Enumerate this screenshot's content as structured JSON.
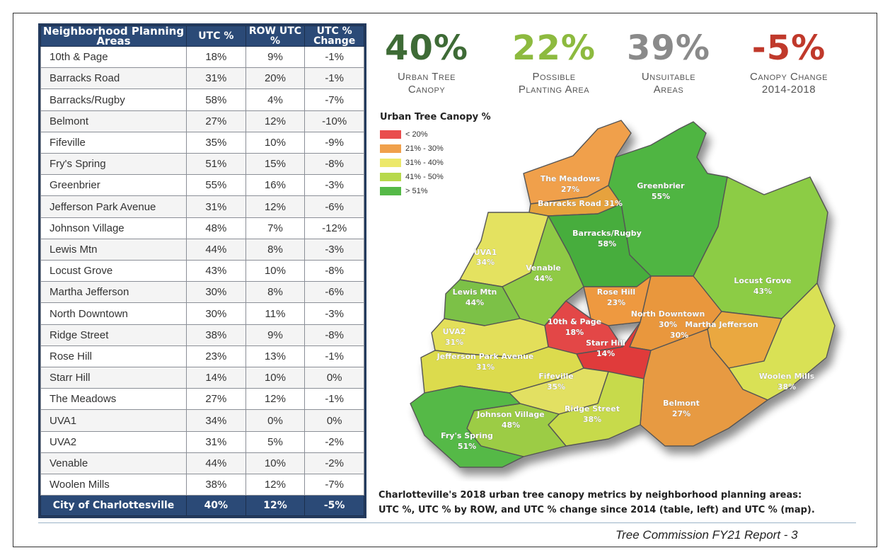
{
  "table": {
    "headers": {
      "area": "Neighborhood Planning Areas",
      "utc": "UTC %",
      "row": "ROW UTC %",
      "change": "UTC % Change"
    },
    "rows": [
      {
        "name": "10th & Page",
        "utc": "18%",
        "row": "9%",
        "change": "-1%"
      },
      {
        "name": "Barracks Road",
        "utc": "31%",
        "row": "20%",
        "change": "-1%"
      },
      {
        "name": "Barracks/Rugby",
        "utc": "58%",
        "row": "4%",
        "change": "-7%"
      },
      {
        "name": "Belmont",
        "utc": "27%",
        "row": "12%",
        "change": "-10%"
      },
      {
        "name": "Fifeville",
        "utc": "35%",
        "row": "10%",
        "change": "-9%"
      },
      {
        "name": "Fry's Spring",
        "utc": "51%",
        "row": "15%",
        "change": "-8%"
      },
      {
        "name": "Greenbrier",
        "utc": "55%",
        "row": "16%",
        "change": "-3%"
      },
      {
        "name": "Jefferson Park Avenue",
        "utc": "31%",
        "row": "12%",
        "change": "-6%"
      },
      {
        "name": "Johnson Village",
        "utc": "48%",
        "row": "7%",
        "change": "-12%"
      },
      {
        "name": "Lewis Mtn",
        "utc": "44%",
        "row": "8%",
        "change": "-3%"
      },
      {
        "name": "Locust Grove",
        "utc": "43%",
        "row": "10%",
        "change": "-8%"
      },
      {
        "name": "Martha Jefferson",
        "utc": "30%",
        "row": "8%",
        "change": "-6%"
      },
      {
        "name": "North Downtown",
        "utc": "30%",
        "row": "11%",
        "change": "-3%"
      },
      {
        "name": "Ridge Street",
        "utc": "38%",
        "row": "9%",
        "change": "-8%"
      },
      {
        "name": "Rose Hill",
        "utc": "23%",
        "row": "13%",
        "change": "-1%"
      },
      {
        "name": "Starr Hill",
        "utc": "14%",
        "row": "10%",
        "change": "0%"
      },
      {
        "name": "The Meadows",
        "utc": "27%",
        "row": "12%",
        "change": "-1%"
      },
      {
        "name": "UVA1",
        "utc": "34%",
        "row": "0%",
        "change": "0%"
      },
      {
        "name": "UVA2",
        "utc": "31%",
        "row": "5%",
        "change": "-2%"
      },
      {
        "name": "Venable",
        "utc": "44%",
        "row": "10%",
        "change": "-2%"
      },
      {
        "name": "Woolen Mills",
        "utc": "38%",
        "row": "12%",
        "change": "-7%"
      }
    ],
    "total": {
      "name": "City of Charlottesville",
      "utc": "40%",
      "row": "12%",
      "change": "-5%"
    }
  },
  "stats": [
    {
      "value": "40%",
      "label_line1": "Urban Tree",
      "label_line2": "Canopy",
      "color": "#3e6b36"
    },
    {
      "value": "22%",
      "label_line1": "Possible",
      "label_line2": "Planting Area",
      "color": "#8dba3f"
    },
    {
      "value": "39%",
      "label_line1": "Unsuitable",
      "label_line2": "Areas",
      "color": "#8a8a8a"
    },
    {
      "value": "-5%",
      "label_line1": "Canopy Change",
      "label_line2": "2014-2018",
      "color": "#c0392b"
    }
  ],
  "legend": {
    "title": "Urban Tree Canopy %",
    "items": [
      {
        "label": "< 20%",
        "color": "#e94e4e"
      },
      {
        "label": "21% - 30%",
        "color": "#f0a04b"
      },
      {
        "label": "31% - 40%",
        "color": "#ece86a"
      },
      {
        "label": "41% - 50%",
        "color": "#b7d94c"
      },
      {
        "label": "> 51%",
        "color": "#55b947"
      }
    ]
  },
  "map": {
    "neighborhoods": [
      {
        "id": "meadows",
        "line1": "The Meadows",
        "line2": "27%",
        "color": "#f0a04b"
      },
      {
        "id": "barracks",
        "line1": "Barracks Road 31%",
        "line2": "",
        "color": "#e6a23d"
      },
      {
        "id": "greenbrier",
        "line1": "Greenbrier",
        "line2": "55%",
        "color": "#4fb543"
      },
      {
        "id": "rugby",
        "line1": "Barracks/Rugby",
        "line2": "58%",
        "color": "#46ad3d"
      },
      {
        "id": "uva1",
        "line1": "UVA1",
        "line2": "34%",
        "color": "#e4e260"
      },
      {
        "id": "venable",
        "line1": "Venable",
        "line2": "44%",
        "color": "#8fca44"
      },
      {
        "id": "lewis",
        "line1": "Lewis Mtn",
        "line2": "44%",
        "color": "#7cc146"
      },
      {
        "id": "rosehill",
        "line1": "Rose Hill",
        "line2": "23%",
        "color": "#ee9940"
      },
      {
        "id": "locust",
        "line1": "Locust Grove",
        "line2": "43%",
        "color": "#8ccc44"
      },
      {
        "id": "tenth",
        "line1": "10th & Page",
        "line2": "18%",
        "color": "#e34646"
      },
      {
        "id": "northdt",
        "line1": "North Downtown",
        "line2": "30%",
        "color": "#e9973c"
      },
      {
        "id": "martha",
        "line1": "Martha Jefferson",
        "line2": "30%",
        "color": "#eaa83f"
      },
      {
        "id": "starr",
        "line1": "Starr Hill",
        "line2": "14%",
        "color": "#e03b3b"
      },
      {
        "id": "uva2",
        "line1": "UVA2",
        "line2": "31%",
        "color": "#e3df5a"
      },
      {
        "id": "jpa",
        "line1": "Jefferson Park Avenue",
        "line2": "31%",
        "color": "#dcdb4e"
      },
      {
        "id": "fifeville",
        "line1": "Fifeville",
        "line2": "35%",
        "color": "#e2e062"
      },
      {
        "id": "woolen",
        "line1": "Woolen Mills",
        "line2": "38%",
        "color": "#d9e155"
      },
      {
        "id": "belmont",
        "line1": "Belmont",
        "line2": "27%",
        "color": "#e79a42"
      },
      {
        "id": "ridge",
        "line1": "Ridge Street",
        "line2": "38%",
        "color": "#c7da4b"
      },
      {
        "id": "johnson",
        "line1": "Johnson Village",
        "line2": "48%",
        "color": "#9ccc44"
      },
      {
        "id": "frys",
        "line1": "Fry's Spring",
        "line2": "51%",
        "color": "#55b947"
      }
    ]
  },
  "caption": {
    "line1": "Charlotteville's 2018 urban tree canopy metrics by neighborhood planning areas:",
    "line2": "UTC %, UTC % by ROW, and UTC % change since 2014 (table, left) and UTC % (map)."
  },
  "footer": "Tree Commission FY21 Report - 3"
}
